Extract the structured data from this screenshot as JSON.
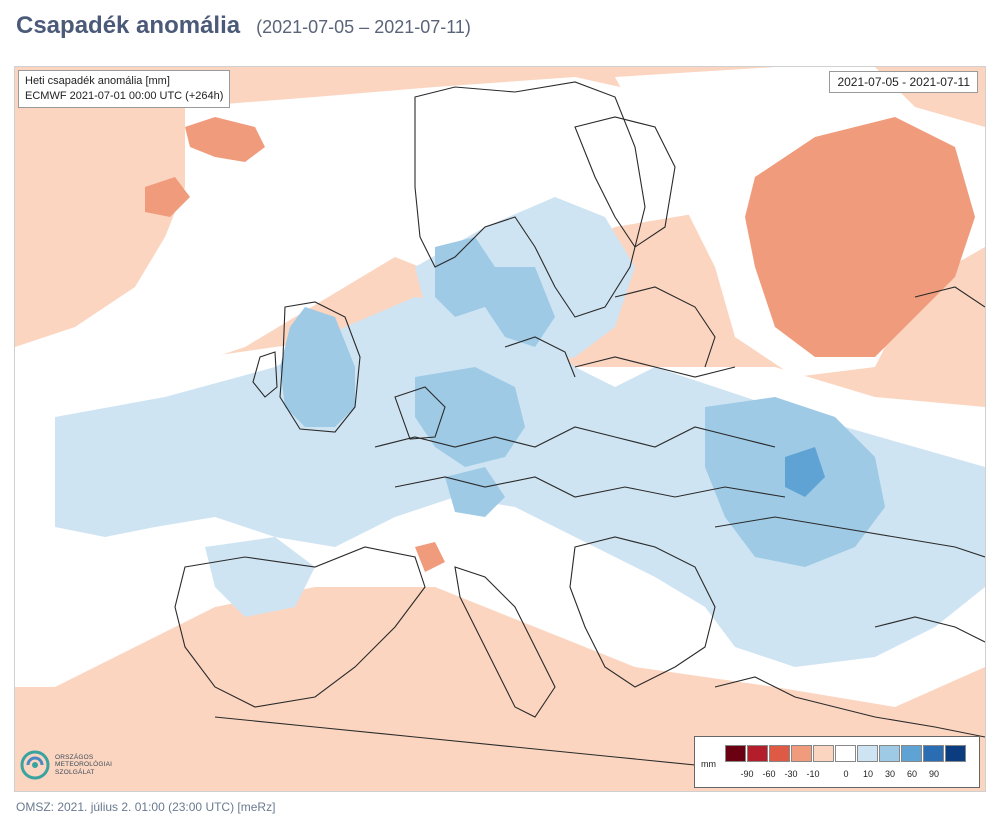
{
  "header": {
    "title": "Csapadék anomália",
    "subtitle": "(2021-07-05 – 2021-07-11)"
  },
  "map": {
    "info_line1": "Heti csapadék anomália [mm]",
    "info_line2": "ECMWF 2021-07-01 00:00 UTC (+264h)",
    "date_range": "2021-07-05 - 2021-07-11"
  },
  "legend": {
    "unit": "mm",
    "labels": [
      "-90",
      "-60",
      "-30",
      "-10",
      "0",
      "10",
      "30",
      "60",
      "90"
    ],
    "colors": [
      "#6b0012",
      "#b41e2b",
      "#de5a45",
      "#f09b7b",
      "#fbd5c0",
      "#ffffff",
      "#cfe4f3",
      "#9ecae6",
      "#5fa2d4",
      "#2a6db3",
      "#0c3c80"
    ]
  },
  "logo": {
    "line1": "ORSZÁGOS",
    "line2": "METEOROLÓGIAI",
    "line3": "SZOLGÁLAT"
  },
  "footer": {
    "text": "OMSZ: 2021. július 2. 01:00 (23:00  UTC)  [meRz]"
  }
}
